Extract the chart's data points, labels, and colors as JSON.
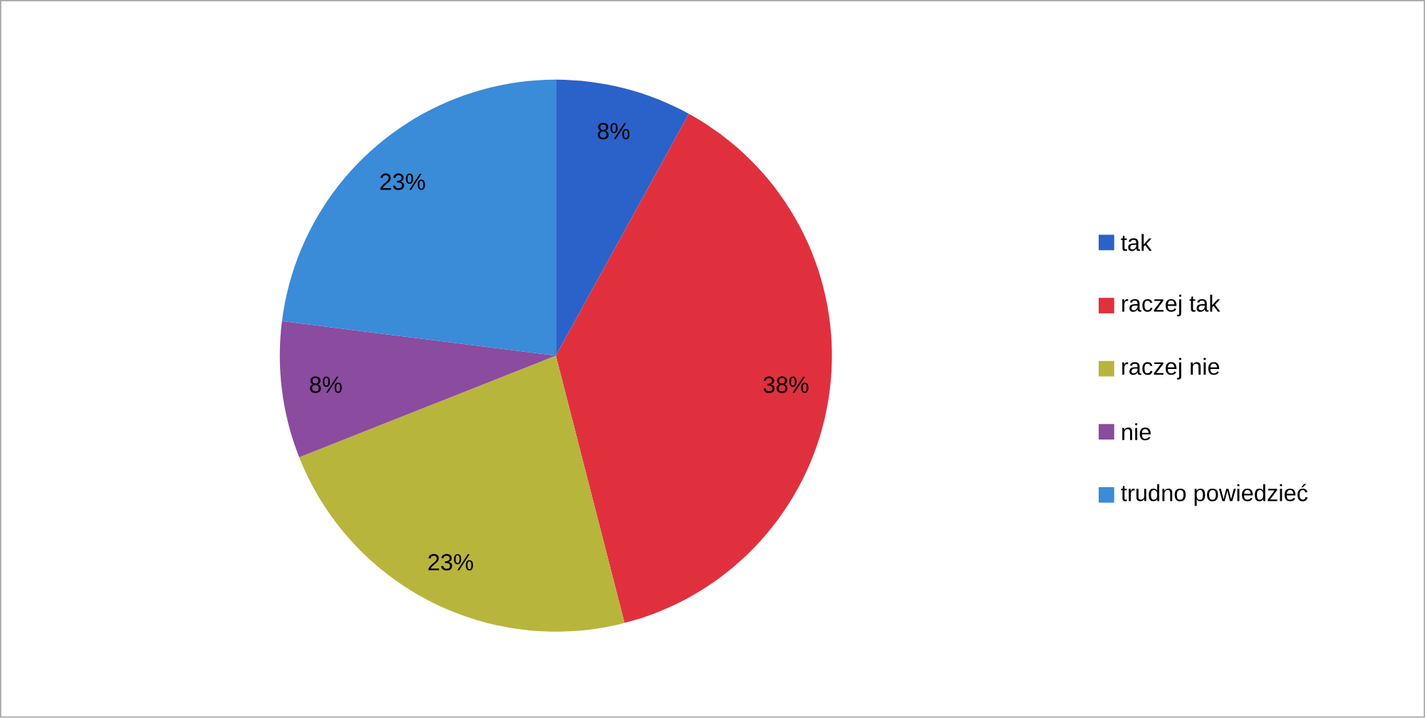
{
  "chart_data": {
    "type": "pie",
    "categories": [
      "tak",
      "raczej tak",
      "raczej nie",
      "nie",
      "trudno powiedzieć"
    ],
    "values": [
      8,
      38,
      23,
      8,
      23
    ],
    "colors": [
      "#2b62c9",
      "#e0303e",
      "#b8b53c",
      "#8b4b9f",
      "#3a8bd8"
    ],
    "value_labels": [
      "8%",
      "38%",
      "23%",
      "8%",
      "23%"
    ],
    "legend": "right"
  }
}
